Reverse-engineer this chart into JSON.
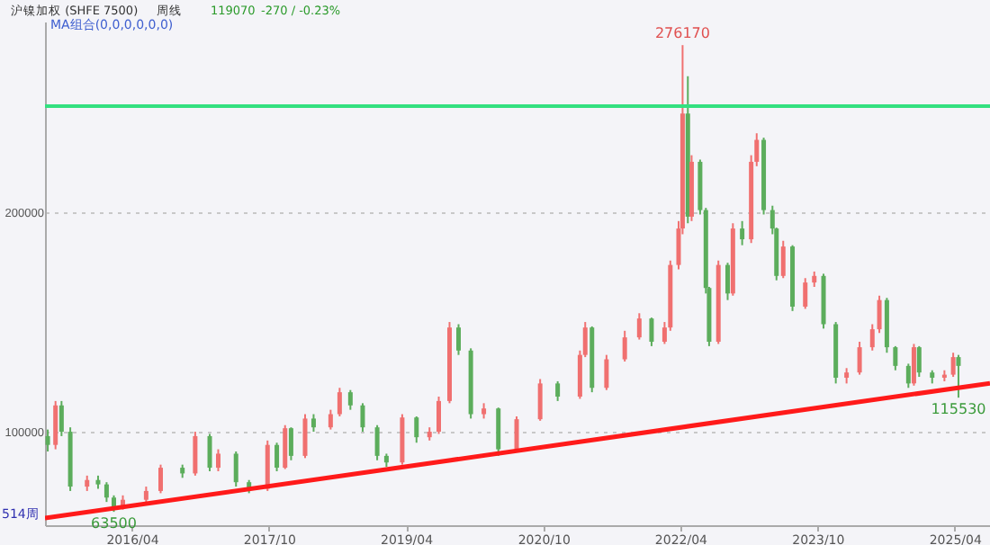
{
  "chart_data": {
    "type": "candlestick",
    "title": "沪镍加权 (SHFE 7500)",
    "subtitle": "周线",
    "x": [
      "2015-05-01",
      "2015-06-01",
      "2015-06-25",
      "2015-07-30",
      "2015-10-05",
      "2015-11-18",
      "2015-12-22",
      "2016-01-20",
      "2016-02-25",
      "2016-05-28",
      "2016-07-25",
      "2016-10-20",
      "2016-12-10",
      "2017-02-06",
      "2017-03-12",
      "2017-05-22",
      "2017-07-13",
      "2017-09-25",
      "2017-11-01",
      "2017-12-04",
      "2017-12-28",
      "2018-02-22",
      "2018-03-28",
      "2018-06-04",
      "2018-07-10",
      "2018-08-22",
      "2018-10-10",
      "2018-12-07",
      "2019-01-13",
      "2019-03-17",
      "2019-05-13",
      "2019-07-04",
      "2019-08-10",
      "2019-09-22",
      "2019-10-28",
      "2019-12-16",
      "2020-02-06",
      "2020-04-04",
      "2020-06-16",
      "2020-09-18",
      "2020-11-27",
      "2021-02-24",
      "2021-03-17",
      "2021-04-13",
      "2021-06-10",
      "2021-08-22",
      "2021-10-19",
      "2021-12-07",
      "2022-01-28",
      "2022-02-20",
      "2022-03-25",
      "2022-04-10",
      "2022-05-01",
      "2022-05-16",
      "2022-06-19",
      "2022-07-12",
      "2022-07-25",
      "2022-08-31",
      "2022-10-07",
      "2022-10-28",
      "2022-12-04",
      "2023-01-09",
      "2023-01-31",
      "2023-02-28",
      "2023-04-04",
      "2023-04-20",
      "2023-05-17",
      "2023-06-23",
      "2023-08-13",
      "2023-09-18",
      "2023-10-25",
      "2023-12-13",
      "2024-01-25",
      "2024-03-17",
      "2024-05-07",
      "2024-06-04",
      "2024-07-04",
      "2024-08-07",
      "2024-09-28",
      "2024-10-20",
      "2024-11-10",
      "2025-01-01",
      "2025-02-19",
      "2025-03-26",
      "2025-04-16"
    ],
    "ohlc": [
      [
        98000,
        101000,
        91000,
        94000
      ],
      [
        94000,
        114000,
        92000,
        112000
      ],
      [
        112000,
        114000,
        98000,
        100000
      ],
      [
        100000,
        102000,
        73000,
        75000
      ],
      [
        75000,
        80000,
        73000,
        78000
      ],
      [
        78000,
        80000,
        74000,
        76000
      ],
      [
        76000,
        77000,
        68000,
        70000
      ],
      [
        70000,
        71000,
        63500,
        66000
      ],
      [
        66000,
        71000,
        64500,
        69000
      ],
      [
        69000,
        75000,
        67000,
        73000
      ],
      [
        73000,
        85000,
        72000,
        83600
      ],
      [
        83600,
        85000,
        79000,
        81000
      ],
      [
        81000,
        100000,
        80000,
        98000
      ],
      [
        98000,
        99000,
        82000,
        83600
      ],
      [
        83600,
        92000,
        82000,
        90000
      ],
      [
        90000,
        91000,
        75000,
        77000
      ],
      [
        77000,
        78000,
        72000,
        74000
      ],
      [
        74000,
        96000,
        73000,
        94000
      ],
      [
        94000,
        95000,
        82000,
        83600
      ],
      [
        83600,
        103000,
        83000,
        101600
      ],
      [
        101600,
        102000,
        87000,
        89000
      ],
      [
        89000,
        108000,
        88000,
        106000
      ],
      [
        106000,
        108000,
        100000,
        102000
      ],
      [
        102000,
        110000,
        101000,
        108000
      ],
      [
        108000,
        120000,
        107000,
        118000
      ],
      [
        118000,
        119000,
        110000,
        112000
      ],
      [
        112000,
        113000,
        100000,
        102000
      ],
      [
        102000,
        103000,
        87000,
        89000
      ],
      [
        89000,
        90000,
        84000,
        86000
      ],
      [
        86000,
        108000,
        85000,
        106500
      ],
      [
        106500,
        107000,
        95000,
        97500
      ],
      [
        97500,
        102000,
        96000,
        100000
      ],
      [
        100000,
        116000,
        99000,
        114000
      ],
      [
        114000,
        150000,
        113000,
        147500
      ],
      [
        147500,
        149000,
        135000,
        137000
      ],
      [
        137000,
        138000,
        106000,
        108000
      ],
      [
        108000,
        113000,
        106000,
        110600
      ],
      [
        110600,
        111000,
        89000,
        92000
      ],
      [
        92000,
        107000,
        91000,
        105700
      ],
      [
        105700,
        124000,
        105000,
        122000
      ],
      [
        122000,
        123000,
        114000,
        116000
      ],
      [
        116000,
        137000,
        115000,
        135000
      ],
      [
        135000,
        150000,
        134000,
        147500
      ],
      [
        147500,
        148000,
        118000,
        120000
      ],
      [
        120000,
        135000,
        119000,
        133000
      ],
      [
        133000,
        146000,
        132000,
        143000
      ],
      [
        143000,
        154000,
        142000,
        151600
      ],
      [
        151600,
        152000,
        139000,
        141000
      ],
      [
        141000,
        150000,
        140000,
        147500
      ],
      [
        147500,
        178000,
        146000,
        176000
      ],
      [
        176000,
        196000,
        174000,
        192600
      ],
      [
        192600,
        276170,
        190000,
        245000
      ],
      [
        245000,
        262000,
        195000,
        198000
      ],
      [
        198000,
        226000,
        196000,
        223000
      ],
      [
        223000,
        224000,
        199000,
        201000
      ],
      [
        201000,
        202000,
        163000,
        165500
      ],
      [
        165500,
        166000,
        139000,
        141000
      ],
      [
        141000,
        178000,
        140000,
        176000
      ],
      [
        176000,
        177000,
        160000,
        163000
      ],
      [
        163000,
        195000,
        162000,
        192600
      ],
      [
        192600,
        196000,
        185000,
        187700
      ],
      [
        187700,
        226000,
        186000,
        223000
      ],
      [
        223000,
        236000,
        221000,
        233000
      ],
      [
        233000,
        234000,
        199000,
        201000
      ],
      [
        201000,
        203000,
        190000,
        192600
      ],
      [
        192600,
        193000,
        169000,
        171000
      ],
      [
        171000,
        187000,
        170000,
        184400
      ],
      [
        184400,
        185000,
        155000,
        157000
      ],
      [
        157000,
        170000,
        156000,
        168000
      ],
      [
        168000,
        173000,
        166000,
        171000
      ],
      [
        171000,
        172000,
        147000,
        149000
      ],
      [
        149000,
        150000,
        122000,
        124600
      ],
      [
        124600,
        129000,
        122000,
        127000
      ],
      [
        127000,
        141000,
        126000,
        138500
      ],
      [
        138500,
        149000,
        137000,
        146700
      ],
      [
        146700,
        162000,
        145000,
        160000
      ],
      [
        160000,
        161000,
        136000,
        138500
      ],
      [
        138500,
        139000,
        128000,
        130000
      ],
      [
        130000,
        131000,
        120000,
        122000
      ],
      [
        122000,
        140000,
        121000,
        138500
      ],
      [
        138500,
        139000,
        125000,
        127000
      ],
      [
        127000,
        128000,
        122000,
        124600
      ],
      [
        124600,
        128000,
        123000,
        126000
      ],
      [
        126000,
        136000,
        125000,
        134000
      ],
      [
        134000,
        135000,
        115530,
        130000
      ]
    ],
    "colors": [
      "#5cad5c",
      "#f07070",
      "#5cad5c",
      "#5cad5c",
      "#f07070",
      "#5cad5c",
      "#5cad5c",
      "#5cad5c",
      "#f07070",
      "#f07070",
      "#f07070",
      "#5cad5c",
      "#f07070",
      "#5cad5c",
      "#f07070",
      "#5cad5c",
      "#5cad5c",
      "#f07070",
      "#5cad5c",
      "#f07070",
      "#5cad5c",
      "#f07070",
      "#5cad5c",
      "#f07070",
      "#f07070",
      "#5cad5c",
      "#5cad5c",
      "#5cad5c",
      "#5cad5c",
      "#f07070",
      "#5cad5c",
      "#f07070",
      "#f07070",
      "#f07070",
      "#5cad5c",
      "#5cad5c",
      "#f07070",
      "#5cad5c",
      "#f07070",
      "#f07070",
      "#5cad5c",
      "#f07070",
      "#f07070",
      "#5cad5c",
      "#f07070",
      "#f07070",
      "#f07070",
      "#5cad5c",
      "#f07070",
      "#f07070",
      "#f07070",
      "#f07070",
      "#5cad5c",
      "#f07070",
      "#5cad5c",
      "#5cad5c",
      "#5cad5c",
      "#f07070",
      "#5cad5c",
      "#f07070",
      "#5cad5c",
      "#f07070",
      "#f07070",
      "#5cad5c",
      "#5cad5c",
      "#5cad5c",
      "#f07070",
      "#5cad5c",
      "#f07070",
      "#f07070",
      "#5cad5c",
      "#5cad5c",
      "#f07070",
      "#f07070",
      "#f07070",
      "#f07070",
      "#5cad5c",
      "#5cad5c",
      "#5cad5c",
      "#f07070",
      "#5cad5c",
      "#5cad5c",
      "#f07070",
      "#f07070",
      "#5cad5c"
    ],
    "series": [
      {
        "type": "line",
        "x": [
          "2015-04-20",
          "2025-08-20"
        ],
        "values": [
          60650,
          122100
        ],
        "color": "#ff1a1a"
      }
    ],
    "ref_lines": [
      {
        "axis": "y",
        "value": 248400,
        "color": "#33e080"
      }
    ],
    "xlim": [
      "2015-04-20",
      "2025-08-20"
    ],
    "xticks": [
      {
        "value": "2016-04-01",
        "label": "2016/04"
      },
      {
        "value": "2017-10-01",
        "label": "2017/10"
      },
      {
        "value": "2019-04-01",
        "label": "2019/04"
      },
      {
        "value": "2020-10-01",
        "label": "2020/10"
      },
      {
        "value": "2022-04-01",
        "label": "2022/04"
      },
      {
        "value": "2023-10-01",
        "label": "2023/10"
      },
      {
        "value": "2025-04-01",
        "label": "2025/04"
      }
    ],
    "ylim": [
      57400,
      286900
    ],
    "yticks": [
      100000,
      200000
    ],
    "grid": "y",
    "annotations": [
      "119070",
      "-270 / -0.23%",
      "MA组合(0,0,0,0,0,0)",
      "514周",
      {
        "text": "276170",
        "x": "2022-04-10",
        "y": 276170
      },
      {
        "text": "63500",
        "x": "2016-01-20",
        "y": 63500
      },
      {
        "text": "115530",
        "x": "2025-04-16",
        "y": 115530
      }
    ]
  }
}
